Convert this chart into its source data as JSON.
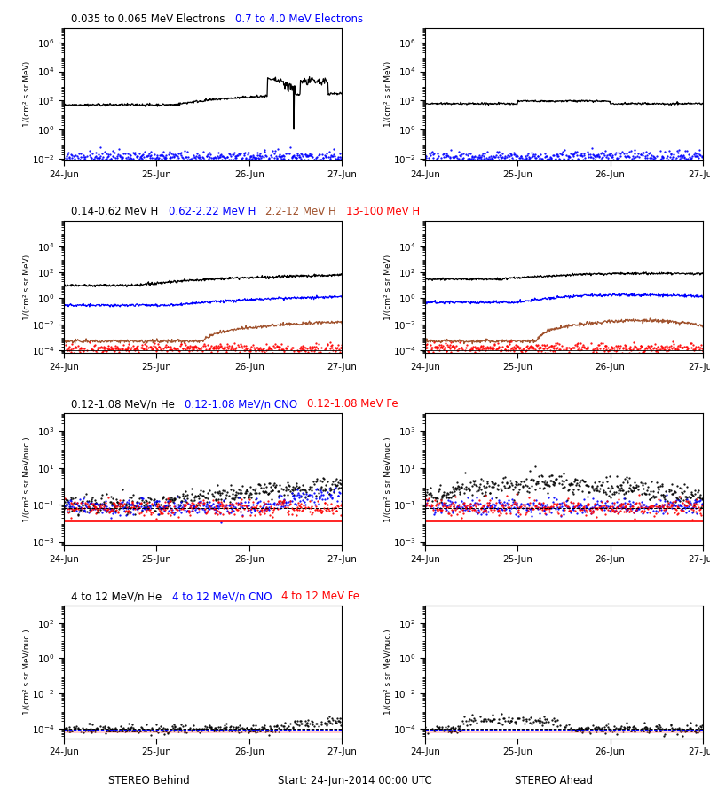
{
  "title_row1_black": "0.035 to 0.065 MeV Electrons",
  "title_row1_blue": "0.7 to 4.0 MeV Electrons",
  "title_row2_black": "0.14-0.62 MeV H",
  "title_row2_blue": "0.62-2.22 MeV H",
  "title_row2_brown": "2.2-12 MeV H",
  "title_row2_red": "13-100 MeV H",
  "title_row3_black": "0.12-1.08 MeV/n He",
  "title_row3_blue": "0.12-1.08 MeV/n CNO",
  "title_row3_red": "0.12-1.08 MeV Fe",
  "title_row4_black": "4 to 12 MeV/n He",
  "title_row4_blue": "4 to 12 MeV/n CNO",
  "title_row4_red": "4 to 12 MeV Fe",
  "xlabel_left": "STEREO Behind",
  "xlabel_right": "STEREO Ahead",
  "xlabel_center": "Start: 24-Jun-2014 00:00 UTC",
  "ylabel_electrons": "1/(cm² s sr MeV)",
  "ylabel_heavy": "1/(cm² s sr MeV/nuc.)",
  "xtick_labels": [
    "24-Jun",
    "25-Jun",
    "26-Jun",
    "27-Jun"
  ],
  "colors": {
    "black": "#000000",
    "blue": "#0000FF",
    "brown": "#A0522D",
    "red": "#FF0000"
  },
  "background": "#FFFFFF",
  "seed": 42
}
